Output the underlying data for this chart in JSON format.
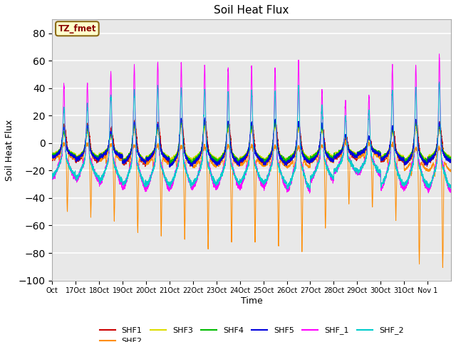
{
  "title": "Soil Heat Flux",
  "xlabel": "Time",
  "ylabel": "Soil Heat Flux",
  "ylim": [
    -100,
    90
  ],
  "yticks": [
    -100,
    -80,
    -60,
    -40,
    -20,
    0,
    20,
    40,
    60,
    80
  ],
  "plot_bg_color": "#e8e8e8",
  "grid_color": "#ffffff",
  "series_colors": {
    "SHF1": "#cc0000",
    "SHF2": "#ff8c00",
    "SHF3": "#dddd00",
    "SHF4": "#00bb00",
    "SHF5": "#0000dd",
    "SHF_1": "#ff00ff",
    "SHF_2": "#00cccc"
  },
  "annotation_text": "TZ_fmet",
  "annotation_color": "#8b0000",
  "annotation_bg": "#ffffcc",
  "annotation_edge": "#8b6914"
}
